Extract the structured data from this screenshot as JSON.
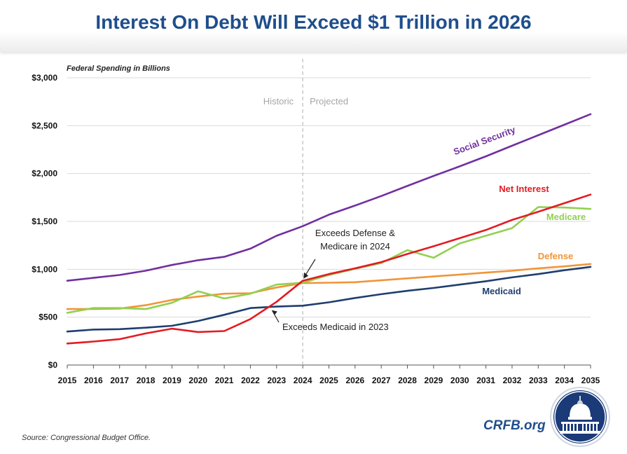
{
  "title": "Interest On Debt Will Exceed $1 Trillion in 2026",
  "source": "Source: Congressional Budget Office.",
  "brand": "CRFB.org",
  "chart_data": {
    "type": "line",
    "subtitle": "Federal Spending in Billions",
    "x": [
      2015,
      2016,
      2017,
      2018,
      2019,
      2020,
      2021,
      2022,
      2023,
      2024,
      2025,
      2026,
      2027,
      2028,
      2029,
      2030,
      2031,
      2032,
      2033,
      2034,
      2035
    ],
    "ylim": [
      0,
      3000
    ],
    "yticks": [
      0,
      500,
      1000,
      1500,
      2000,
      2500,
      3000
    ],
    "ytick_labels": [
      "$0",
      "$500",
      "$1,000",
      "$1,500",
      "$2,000",
      "$2,500",
      "$3,000"
    ],
    "divider_year": 2024,
    "historic_label": "Historic",
    "projected_label": "Projected",
    "series": [
      {
        "name": "Social Security",
        "color": "#7030a0",
        "values": [
          880,
          910,
          940,
          985,
          1045,
          1095,
          1130,
          1215,
          1350,
          1450,
          1570,
          1665,
          1765,
          1870,
          1975,
          2075,
          2180,
          2290,
          2400,
          2510,
          2620
        ]
      },
      {
        "name": "Net Interest",
        "color": "#e31b23",
        "values": [
          225,
          245,
          270,
          330,
          380,
          345,
          355,
          480,
          660,
          880,
          950,
          1010,
          1075,
          1160,
          1240,
          1325,
          1410,
          1515,
          1600,
          1690,
          1780
        ]
      },
      {
        "name": "Medicare",
        "color": "#92d050",
        "values": [
          545,
          595,
          595,
          585,
          650,
          770,
          695,
          745,
          840,
          860,
          940,
          1005,
          1065,
          1200,
          1120,
          1270,
          1350,
          1430,
          1650,
          1645,
          1630
        ]
      },
      {
        "name": "Defense",
        "color": "#f0953a",
        "values": [
          585,
          585,
          590,
          625,
          680,
          715,
          745,
          750,
          810,
          855,
          860,
          865,
          885,
          905,
          925,
          945,
          965,
          985,
          1010,
          1030,
          1055
        ]
      },
      {
        "name": "Medicaid",
        "color": "#1f3e6e",
        "values": [
          350,
          370,
          375,
          390,
          410,
          460,
          525,
          595,
          610,
          620,
          655,
          700,
          740,
          775,
          805,
          840,
          875,
          915,
          950,
          990,
          1025
        ]
      }
    ],
    "annotations": [
      {
        "text1": "Exceeds Defense &",
        "text2": "Medicare in 2024",
        "x": 2024,
        "y": 880
      },
      {
        "text1": "Exceeds Medicaid in 2023",
        "text2": "",
        "x": 2023,
        "y": 610
      }
    ]
  }
}
